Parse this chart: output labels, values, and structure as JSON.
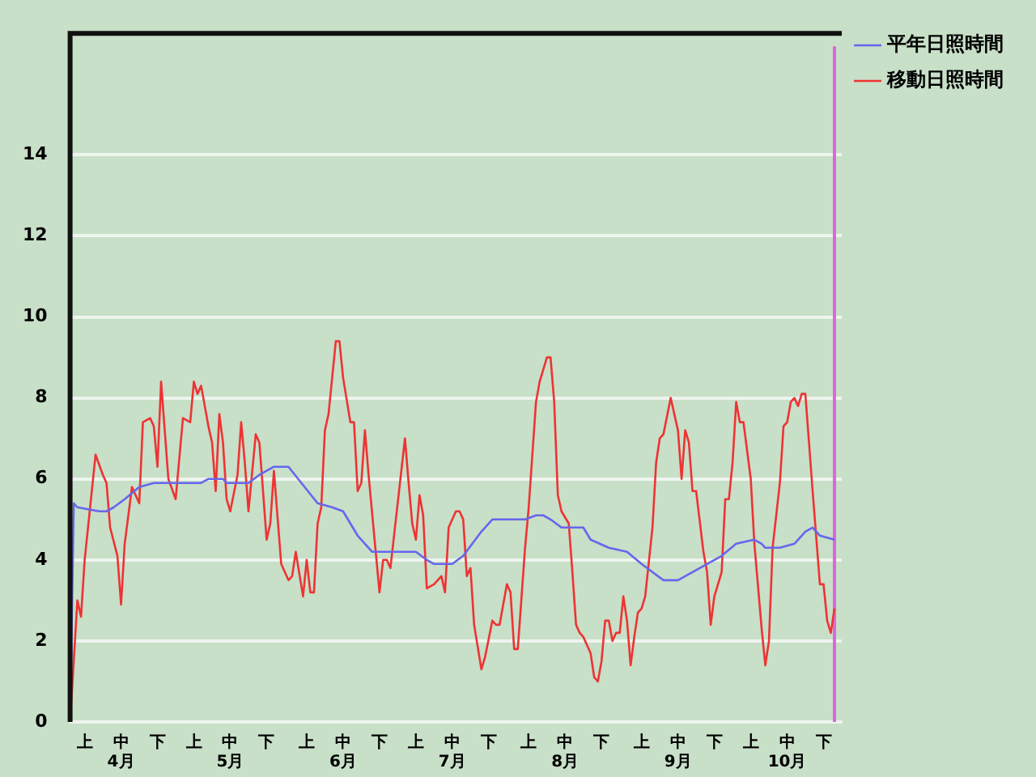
{
  "chart_data": {
    "type": "line",
    "xlim": [
      "--04-01",
      "--10-30"
    ],
    "xticks": [
      {
        "value": "--04-05",
        "label": "上"
      },
      {
        "value": "--04-15",
        "label": "中\n4月"
      },
      {
        "value": "--04-25",
        "label": "下"
      },
      {
        "value": "--05-05",
        "label": "上"
      },
      {
        "value": "--05-15",
        "label": "中\n5月"
      },
      {
        "value": "--05-25",
        "label": "下"
      },
      {
        "value": "--06-05",
        "label": "上"
      },
      {
        "value": "--06-15",
        "label": "中\n6月"
      },
      {
        "value": "--06-25",
        "label": "下"
      },
      {
        "value": "--07-05",
        "label": "上"
      },
      {
        "value": "--07-15",
        "label": "中\n7月"
      },
      {
        "value": "--07-25",
        "label": "下"
      },
      {
        "value": "--08-05",
        "label": "上"
      },
      {
        "value": "--08-15",
        "label": "中\n8月"
      },
      {
        "value": "--08-25",
        "label": "下"
      },
      {
        "value": "--09-05",
        "label": "上"
      },
      {
        "value": "--09-15",
        "label": "中\n9月"
      },
      {
        "value": "--09-25",
        "label": "下"
      },
      {
        "value": "--10-05",
        "label": "上"
      },
      {
        "value": "--10-15",
        "label": "中\n10月"
      },
      {
        "value": "--10-25",
        "label": "下"
      }
    ],
    "ylim": [
      0,
      17
    ],
    "yticks": [
      0,
      2,
      4,
      6,
      8,
      10,
      12,
      14
    ],
    "grid": "y",
    "legend": "top right",
    "marker": "none",
    "line_style": "solid",
    "ref_lines": [
      {
        "axis": "x",
        "value": "--10-28",
        "color": "#dd66dd"
      }
    ],
    "series": [
      {
        "name": "平年日照時間",
        "color": "#6666ee",
        "x": [
          "--04-01",
          "--04-02",
          "--04-03",
          "--04-09",
          "--04-11",
          "--04-13",
          "--04-16",
          "--04-20",
          "--04-24",
          "--05-07",
          "--05-09",
          "--05-13",
          "--05-14",
          "--05-20",
          "--05-23",
          "--05-27",
          "--05-31",
          "--06-08",
          "--06-12",
          "--06-15",
          "--06-19",
          "--06-23",
          "--07-05",
          "--07-08",
          "--07-10",
          "--07-15",
          "--07-18",
          "--07-23",
          "--07-26",
          "--08-04",
          "--08-07",
          "--08-09",
          "--08-11",
          "--08-14",
          "--08-20",
          "--08-22",
          "--08-27",
          "--09-01",
          "--09-05",
          "--09-11",
          "--09-15",
          "--09-19",
          "--09-23",
          "--09-27",
          "--10-01",
          "--10-06",
          "--10-08",
          "--10-09",
          "--10-13",
          "--10-17",
          "--10-20",
          "--10-22",
          "--10-24",
          "--10-28"
        ],
        "values": [
          0,
          5.4,
          5.3,
          5.2,
          5.2,
          5.3,
          5.5,
          5.8,
          5.9,
          5.9,
          6.0,
          6.0,
          5.9,
          5.9,
          6.1,
          6.3,
          6.3,
          5.4,
          5.3,
          5.2,
          4.6,
          4.2,
          4.2,
          4.0,
          3.9,
          3.9,
          4.1,
          4.7,
          5.0,
          5.0,
          5.1,
          5.1,
          5.0,
          4.8,
          4.8,
          4.5,
          4.3,
          4.2,
          3.9,
          3.5,
          3.5,
          3.7,
          3.9,
          4.1,
          4.4,
          4.5,
          4.4,
          4.3,
          4.3,
          4.4,
          4.7,
          4.8,
          4.6,
          4.5
        ]
      },
      {
        "name": "移動日照時間",
        "color": "#ee3333",
        "x": [
          "--04-01",
          "--04-03",
          "--04-04",
          "--04-05",
          "--04-08",
          "--04-10",
          "--04-11",
          "--04-12",
          "--04-14",
          "--04-15",
          "--04-16",
          "--04-18",
          "--04-20",
          "--04-21",
          "--04-23",
          "--04-24",
          "--04-25",
          "--04-26",
          "--04-28",
          "--04-30",
          "--05-02",
          "--05-04",
          "--05-05",
          "--05-06",
          "--05-07",
          "--05-09",
          "--05-10",
          "--05-11",
          "--05-12",
          "--05-13",
          "--05-14",
          "--05-15",
          "--05-17",
          "--05-18",
          "--05-19",
          "--05-20",
          "--05-22",
          "--05-23",
          "--05-25",
          "--05-26",
          "--05-27",
          "--05-29",
          "--05-31",
          "--06-01",
          "--06-02",
          "--06-04",
          "--06-05",
          "--06-06",
          "--06-07",
          "--06-08",
          "--06-09",
          "--06-10",
          "--06-11",
          "--06-13",
          "--06-14",
          "--06-15",
          "--06-17",
          "--06-18",
          "--06-19",
          "--06-20",
          "--06-21",
          "--06-22",
          "--06-25",
          "--06-26",
          "--06-27",
          "--06-28",
          "--06-29",
          "--07-02",
          "--07-03",
          "--07-04",
          "--07-05",
          "--07-06",
          "--07-07",
          "--07-08",
          "--07-10",
          "--07-12",
          "--07-13",
          "--07-14",
          "--07-16",
          "--07-17",
          "--07-18",
          "--07-19",
          "--07-20",
          "--07-21",
          "--07-23",
          "--07-24",
          "--07-26",
          "--07-27",
          "--07-28",
          "--07-30",
          "--07-31",
          "--08-01",
          "--08-02",
          "--08-04",
          "--08-05",
          "--08-07",
          "--08-08",
          "--08-10",
          "--08-11",
          "--08-12",
          "--08-13",
          "--08-14",
          "--08-16",
          "--08-17",
          "--08-18",
          "--08-19",
          "--08-20",
          "--08-22",
          "--08-23",
          "--08-24",
          "--08-25",
          "--08-26",
          "--08-27",
          "--08-28",
          "--08-29",
          "--08-30",
          "--08-31",
          "--09-01",
          "--09-02",
          "--09-03",
          "--09-04",
          "--09-05",
          "--09-06",
          "--09-08",
          "--09-09",
          "--09-10",
          "--09-11",
          "--09-13",
          "--09-14",
          "--09-15",
          "--09-16",
          "--09-17",
          "--09-18",
          "--09-19",
          "--09-20",
          "--09-22",
          "--09-23",
          "--09-24",
          "--09-25",
          "--09-27",
          "--09-28",
          "--09-29",
          "--09-30",
          "--10-01",
          "--10-02",
          "--10-03",
          "--10-05",
          "--10-06",
          "--10-08",
          "--10-09",
          "--10-10",
          "--10-11",
          "--10-13",
          "--10-14",
          "--10-15",
          "--10-16",
          "--10-17",
          "--10-18",
          "--10-19",
          "--10-20",
          "--10-21",
          "--10-22",
          "--10-24",
          "--10-25",
          "--10-26",
          "--10-27",
          "--10-28"
        ],
        "values": [
          0,
          3.0,
          2.6,
          4.0,
          6.6,
          6.1,
          5.9,
          4.8,
          4.1,
          2.9,
          4.4,
          5.8,
          5.4,
          7.4,
          7.5,
          7.3,
          6.3,
          8.4,
          6.0,
          5.5,
          7.5,
          7.4,
          8.4,
          8.1,
          8.3,
          7.3,
          6.9,
          5.7,
          7.6,
          6.9,
          5.5,
          5.2,
          6.1,
          7.4,
          6.4,
          5.2,
          7.1,
          6.9,
          4.5,
          4.9,
          6.2,
          3.9,
          3.5,
          3.6,
          4.2,
          3.1,
          4.0,
          3.2,
          3.2,
          4.9,
          5.3,
          7.2,
          7.6,
          9.4,
          9.4,
          8.5,
          7.4,
          7.4,
          5.7,
          5.9,
          7.2,
          6.1,
          3.2,
          4.0,
          4.0,
          3.8,
          4.6,
          7.0,
          5.9,
          4.9,
          4.5,
          5.6,
          5.1,
          3.3,
          3.4,
          3.6,
          3.2,
          4.8,
          5.2,
          5.2,
          5.0,
          3.6,
          3.8,
          2.4,
          1.3,
          1.6,
          2.5,
          2.4,
          2.4,
          3.4,
          3.2,
          1.8,
          1.8,
          4.3,
          5.3,
          7.9,
          8.4,
          9.0,
          9.0,
          7.9,
          5.6,
          5.2,
          4.9,
          3.7,
          2.4,
          2.2,
          2.1,
          1.7,
          1.1,
          1.0,
          1.5,
          2.5,
          2.5,
          2.0,
          2.2,
          2.2,
          3.1,
          2.5,
          1.4,
          2.1,
          2.7,
          2.8,
          3.1,
          4.8,
          6.4,
          7.0,
          7.1,
          8.0,
          7.6,
          7.2,
          6.0,
          7.2,
          6.9,
          5.7,
          5.7,
          4.2,
          3.7,
          2.4,
          3.1,
          3.7,
          5.5,
          5.5,
          6.4,
          7.9,
          7.4,
          7.4,
          6.0,
          4.4,
          2.3,
          1.4,
          2.0,
          4.3,
          5.9,
          7.3,
          7.4,
          7.9,
          8.0,
          7.8,
          8.1,
          8.1,
          6.9,
          5.7,
          3.4,
          3.4,
          2.5,
          2.2,
          2.8
        ]
      }
    ]
  }
}
